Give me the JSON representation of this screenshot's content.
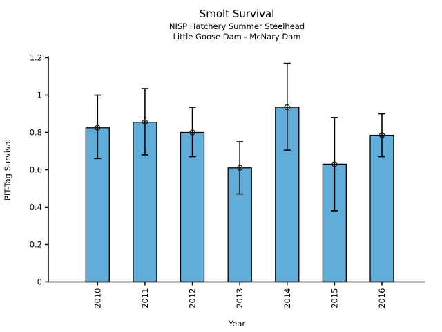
{
  "header": {
    "title": "Smolt Survival",
    "subtitle1": "NISP Hatchery Summer Steelhead",
    "subtitle2": "Little Goose Dam - McNary Dam"
  },
  "chart_data": {
    "type": "bar",
    "title": "Smolt Survival",
    "subtitles": [
      "NISP Hatchery Summer Steelhead",
      "Little Goose Dam - McNary Dam"
    ],
    "categories": [
      "2010",
      "2011",
      "2012",
      "2013",
      "2014",
      "2015",
      "2016"
    ],
    "values": [
      0.825,
      0.855,
      0.8,
      0.61,
      0.935,
      0.63,
      0.785
    ],
    "error_low": [
      0.66,
      0.68,
      0.67,
      0.47,
      0.705,
      0.38,
      0.67
    ],
    "error_high": [
      1.0,
      1.035,
      0.935,
      0.75,
      1.17,
      0.88,
      0.9
    ],
    "xlabel": "Year",
    "ylabel": "PIT-Tag Survival",
    "ylim": [
      0,
      1.2
    ],
    "yticks": [
      0,
      0.2,
      0.4,
      0.6,
      0.8,
      1,
      1.2
    ],
    "ytick_labels": [
      "0",
      "0.2",
      "0.4",
      "0.6",
      "0.8",
      "1",
      "1.2"
    ],
    "bar_color": "#5FADD8",
    "bar_edge_color": "#000000",
    "error_color": "#000000",
    "marker": "open-circle",
    "marker_color": "#1a1a1a",
    "grid": false,
    "legend": null
  }
}
